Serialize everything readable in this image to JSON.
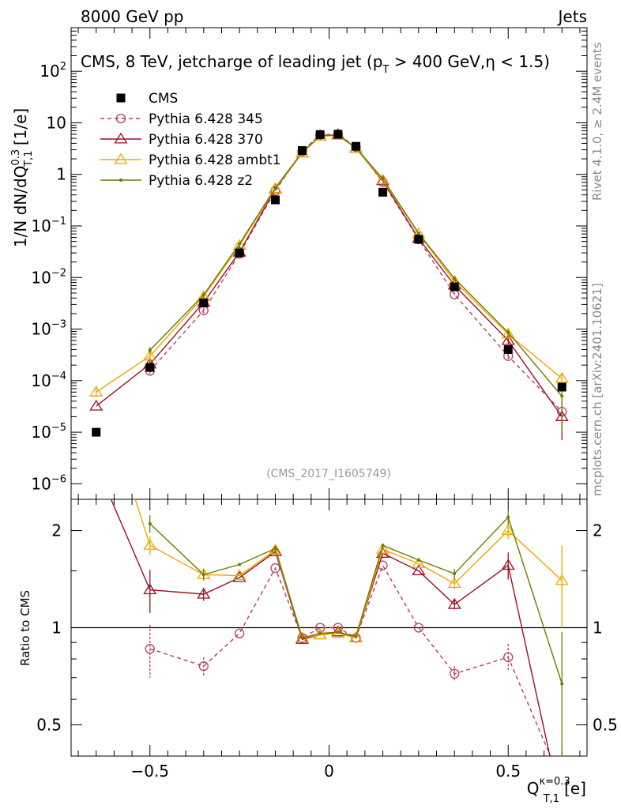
{
  "header": {
    "energy_label": "8000 GeV pp",
    "category_label": "Jets",
    "title": "CMS, 8 TeV, jetcharge of leading jet (p_T > 400 GeV,η < 1.5)",
    "watermark": "(CMS_2017_I1605749)",
    "side_left": "Rivet 4.1.0, ≥ 2.4M events",
    "side_right": "mcplots.cern.ch [arXiv:2401.10621]"
  },
  "colors": {
    "cms": "#000000",
    "p345": "#b5405d",
    "p370": "#9b0f23",
    "ambt1": "#f0a800",
    "z2": "#6e7a00"
  },
  "chart_data": [
    {
      "type": "line",
      "panel": "main",
      "ylabel": "1/N dN/dQ_{T,1}^{0.3} [1/e]",
      "yscale": "log",
      "ylim": [
        5e-07,
        700
      ],
      "xlim": [
        -0.72,
        0.72
      ],
      "x": [
        -0.65,
        -0.5,
        -0.35,
        -0.25,
        -0.15,
        -0.075,
        -0.025,
        0.025,
        0.075,
        0.15,
        0.25,
        0.35,
        0.5,
        0.65
      ],
      "y_ticks": [
        {
          "v": 100,
          "b": "10",
          "e": "2"
        },
        {
          "v": 10,
          "b": "10",
          "e": ""
        },
        {
          "v": 1,
          "b": "1",
          "e": ""
        },
        {
          "v": 0.1,
          "b": "10",
          "e": "−1"
        },
        {
          "v": 0.01,
          "b": "10",
          "e": "−2"
        },
        {
          "v": 0.001,
          "b": "10",
          "e": "−3"
        },
        {
          "v": 0.0001,
          "b": "10",
          "e": "−4"
        },
        {
          "v": 1e-05,
          "b": "10",
          "e": "−5"
        },
        {
          "v": 1e-06,
          "b": "10",
          "e": "−6"
        }
      ],
      "series": [
        {
          "name": "CMS",
          "values": [
            1e-05,
            0.00018,
            0.0032,
            0.03,
            0.32,
            2.9,
            5.9,
            6.0,
            3.5,
            0.45,
            0.055,
            0.0066,
            0.0004,
            7.5e-05
          ]
        },
        {
          "name": "Pythia 6.428 345",
          "values": [
            null,
            0.000155,
            0.0023,
            0.029,
            0.48,
            2.8,
            5.9,
            6.0,
            3.4,
            0.71,
            0.055,
            0.0047,
            0.0003,
            2.5e-05
          ],
          "err": [
            null,
            2.5e-05,
            0.0003,
            null,
            null,
            null,
            null,
            null,
            null,
            null,
            null,
            0.0004,
            4e-05,
            1.5e-05
          ]
        },
        {
          "name": "Pythia 6.428 370",
          "values": [
            3.2e-05,
            0.00021,
            0.0033,
            0.031,
            0.52,
            2.6,
            5.5,
            5.9,
            3.2,
            0.75,
            0.057,
            0.0071,
            0.0006,
            2e-05
          ],
          "err": [
            null,
            5e-05,
            0.0004,
            null,
            null,
            null,
            null,
            null,
            null,
            null,
            null,
            null,
            0.0001,
            1.3e-05
          ]
        },
        {
          "name": "Pythia 6.428 ambt1",
          "values": [
            6e-05,
            0.0003,
            0.0043,
            0.042,
            0.53,
            2.6,
            5.5,
            5.7,
            3.2,
            0.78,
            0.07,
            0.0085,
            0.0008,
            0.00011
          ],
          "err": [
            1.2e-05,
            4e-05,
            0.0004,
            null,
            null,
            null,
            null,
            null,
            null,
            null,
            null,
            null,
            0.00012,
            2.5e-05
          ]
        },
        {
          "name": "Pythia 6.428 z2",
          "values": [
            null,
            0.00039,
            0.0046,
            0.045,
            0.55,
            2.7,
            5.6,
            5.8,
            3.3,
            0.82,
            0.072,
            0.0096,
            0.00086,
            5e-05
          ],
          "err": [
            null,
            6e-05,
            0.0005,
            null,
            null,
            null,
            null,
            null,
            null,
            null,
            null,
            null,
            0.0001,
            4e-05
          ]
        }
      ]
    },
    {
      "type": "line",
      "panel": "ratio",
      "ylabel": "Ratio to CMS",
      "xlabel": "Q_{T,1}^{κ=0.3} [e]",
      "yscale": "log",
      "ylim": [
        0.4,
        2.5
      ],
      "reference_line": 1,
      "x_ticks": [
        "−0.5",
        "0",
        "0.5"
      ],
      "y_ticks": [
        "0.5",
        "1",
        "2"
      ],
      "series": [
        {
          "name": "Pythia 6.428 345",
          "values": [
            null,
            0.86,
            0.76,
            0.96,
            1.53,
            0.93,
            1.0,
            1.0,
            0.93,
            1.56,
            1.0,
            0.72,
            0.81,
            0.33
          ],
          "err": [
            null,
            0.16,
            0.05,
            null,
            null,
            null,
            null,
            null,
            null,
            null,
            null,
            0.04,
            0.08,
            null
          ]
        },
        {
          "name": "Pythia 6.428 370",
          "values": [
            3.2,
            1.31,
            1.27,
            1.43,
            1.72,
            0.92,
            0.95,
            0.97,
            0.93,
            1.7,
            1.5,
            1.18,
            1.56,
            0.27
          ],
          "err": [
            null,
            0.2,
            0.06,
            null,
            null,
            null,
            null,
            null,
            null,
            null,
            null,
            0.04,
            0.15,
            null
          ]
        },
        {
          "name": "Pythia 6.428 ambt1",
          "values": [
            6.0,
            1.8,
            1.46,
            1.45,
            1.74,
            0.93,
            0.95,
            0.96,
            0.93,
            1.75,
            1.58,
            1.37,
            2.0,
            1.4
          ],
          "err": [
            null,
            0.12,
            0.06,
            null,
            null,
            null,
            null,
            null,
            null,
            null,
            null,
            0.05,
            0.12,
            0.4
          ]
        },
        {
          "name": "Pythia 6.428 z2",
          "values": [
            null,
            2.1,
            1.46,
            1.57,
            1.76,
            0.93,
            0.96,
            0.97,
            0.94,
            1.8,
            1.62,
            1.47,
            2.2,
            0.67
          ],
          "err": [
            null,
            0.13,
            0.06,
            null,
            null,
            null,
            null,
            null,
            null,
            null,
            null,
            0.05,
            0.12,
            0.3
          ]
        }
      ]
    }
  ]
}
